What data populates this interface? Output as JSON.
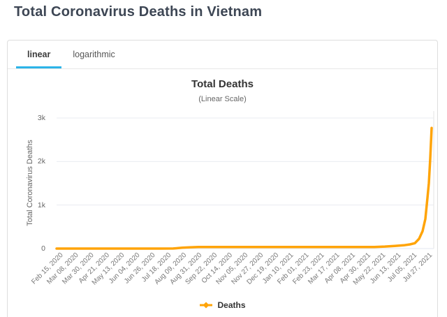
{
  "header": {
    "title": "Total Coronavirus Deaths in Vietnam"
  },
  "tabs": {
    "items": [
      {
        "label": "linear",
        "active": true
      },
      {
        "label": "logarithmic",
        "active": false
      }
    ]
  },
  "colors": {
    "accent_tab_underline": "#2cb4e8",
    "series_orange": "#ffa408",
    "gridline": "#e9ebf1",
    "zero_line": "#e3e7ef",
    "plot_border": "#e6e6e6",
    "title_text": "#3d4654"
  },
  "chart_data": {
    "type": "line",
    "title": "Total Deaths",
    "subtitle": "(Linear Scale)",
    "xlabel": "",
    "ylabel": "Total Coronavirus Deaths",
    "ylim": [
      0,
      3000
    ],
    "grid": true,
    "yticks": [
      {
        "value": 0,
        "label": "0"
      },
      {
        "value": 1000,
        "label": "1k"
      },
      {
        "value": 2000,
        "label": "2k"
      },
      {
        "value": 3000,
        "label": "3k"
      }
    ],
    "xtick_interval_days": 22,
    "x_range_days": [
      0,
      540
    ],
    "xtick_labels": [
      "Feb 15, 2020",
      "Mar 08, 2020",
      "Mar 30, 2020",
      "Apr 21, 2020",
      "May 13, 2020",
      "Jun 04, 2020",
      "Jun 26, 2020",
      "Jul 18, 2020",
      "Aug 09, 2020",
      "Aug 31, 2020",
      "Sep 22, 2020",
      "Oct 14, 2020",
      "Nov 05, 2020",
      "Nov 27, 2020",
      "Dec 19, 2020",
      "Jan 10, 2021",
      "Feb 01, 2021",
      "Feb 23, 2021",
      "Mar 17, 2021",
      "Apr 08, 2021",
      "Apr 30, 2021",
      "May 22, 2021",
      "Jun 13, 2021",
      "Jul 05, 2021",
      "Jul 27, 2021"
    ],
    "legend": {
      "position": "bottom"
    },
    "series": [
      {
        "name": "Deaths",
        "color": "#ffa408",
        "points": [
          {
            "date": "Feb 15, 2020",
            "day": 0,
            "value": 0
          },
          {
            "date": "Apr 15, 2020",
            "day": 60,
            "value": 0
          },
          {
            "date": "Jul 14, 2020",
            "day": 150,
            "value": 0
          },
          {
            "date": "Jul 31, 2020",
            "day": 167,
            "value": 2
          },
          {
            "date": "Aug 05, 2020",
            "day": 172,
            "value": 8
          },
          {
            "date": "Aug 13, 2020",
            "day": 180,
            "value": 21
          },
          {
            "date": "Aug 23, 2020",
            "day": 190,
            "value": 27
          },
          {
            "date": "Sep 05, 2020",
            "day": 203,
            "value": 35
          },
          {
            "date": "Nov 01, 2020",
            "day": 260,
            "value": 35
          },
          {
            "date": "Dec 31, 2020",
            "day": 320,
            "value": 35
          },
          {
            "date": "Mar 11, 2021",
            "day": 390,
            "value": 35
          },
          {
            "date": "Apr 30, 2021",
            "day": 440,
            "value": 35
          },
          {
            "date": "May 15, 2021",
            "day": 455,
            "value": 37
          },
          {
            "date": "May 30, 2021",
            "day": 470,
            "value": 47
          },
          {
            "date": "Jun 13, 2021",
            "day": 484,
            "value": 61
          },
          {
            "date": "Jun 26, 2021",
            "day": 497,
            "value": 76
          },
          {
            "date": "Jul 05, 2021",
            "day": 506,
            "value": 97
          },
          {
            "date": "Jul 12, 2021",
            "day": 513,
            "value": 123
          },
          {
            "date": "Jul 18, 2021",
            "day": 519,
            "value": 225
          },
          {
            "date": "Jul 23, 2021",
            "day": 524,
            "value": 400
          },
          {
            "date": "Jul 27, 2021",
            "day": 528,
            "value": 680
          },
          {
            "date": "Jul 30, 2021",
            "day": 531,
            "value": 1161
          },
          {
            "date": "Aug 01, 2021",
            "day": 533,
            "value": 1500
          },
          {
            "date": "Aug 03, 2021",
            "day": 535,
            "value": 2071
          },
          {
            "date": "Aug 05, 2021",
            "day": 537,
            "value": 2770
          }
        ]
      }
    ]
  }
}
